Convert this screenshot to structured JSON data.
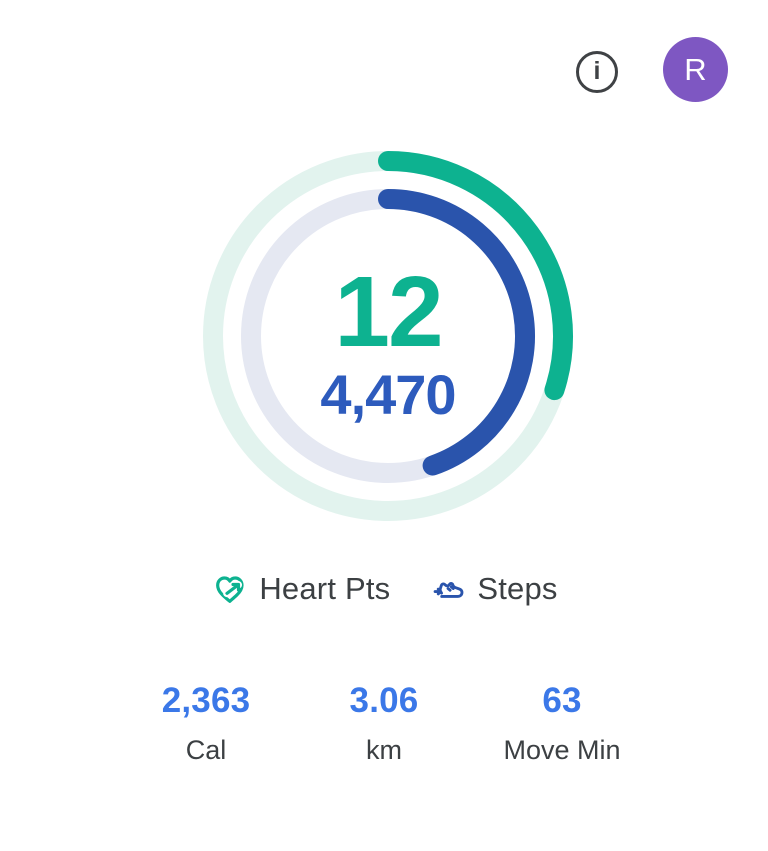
{
  "header": {
    "info_icon": "i",
    "avatar": {
      "initial": "R",
      "color": "#7e57c2"
    }
  },
  "rings": {
    "heart": {
      "label": "Heart Pts",
      "value_display": "12",
      "sweep_deg": 108,
      "radius": 175,
      "color": "#0db290",
      "track_color": "#e2f3ee"
    },
    "steps": {
      "label": "Steps",
      "value_display": "4,470",
      "sweep_deg": 161,
      "radius": 137,
      "color": "#2a54ac",
      "track_color": "#e5e8f2"
    }
  },
  "stats": [
    {
      "value": "2,363",
      "label": "Cal"
    },
    {
      "value": "3.06",
      "label": "km"
    },
    {
      "value": "63",
      "label": "Move Min"
    }
  ],
  "colors": {
    "teal": "#0db290",
    "teal_track": "#e2f3ee",
    "blue": "#2a54ac",
    "blue_track": "#e5e8f2",
    "steps_text": "#2d5bbd",
    "stat_value": "#3b78e8",
    "label_text": "#3c4043",
    "icon_gray": "#3f4245",
    "avatar_bg": "#7e57c2"
  }
}
